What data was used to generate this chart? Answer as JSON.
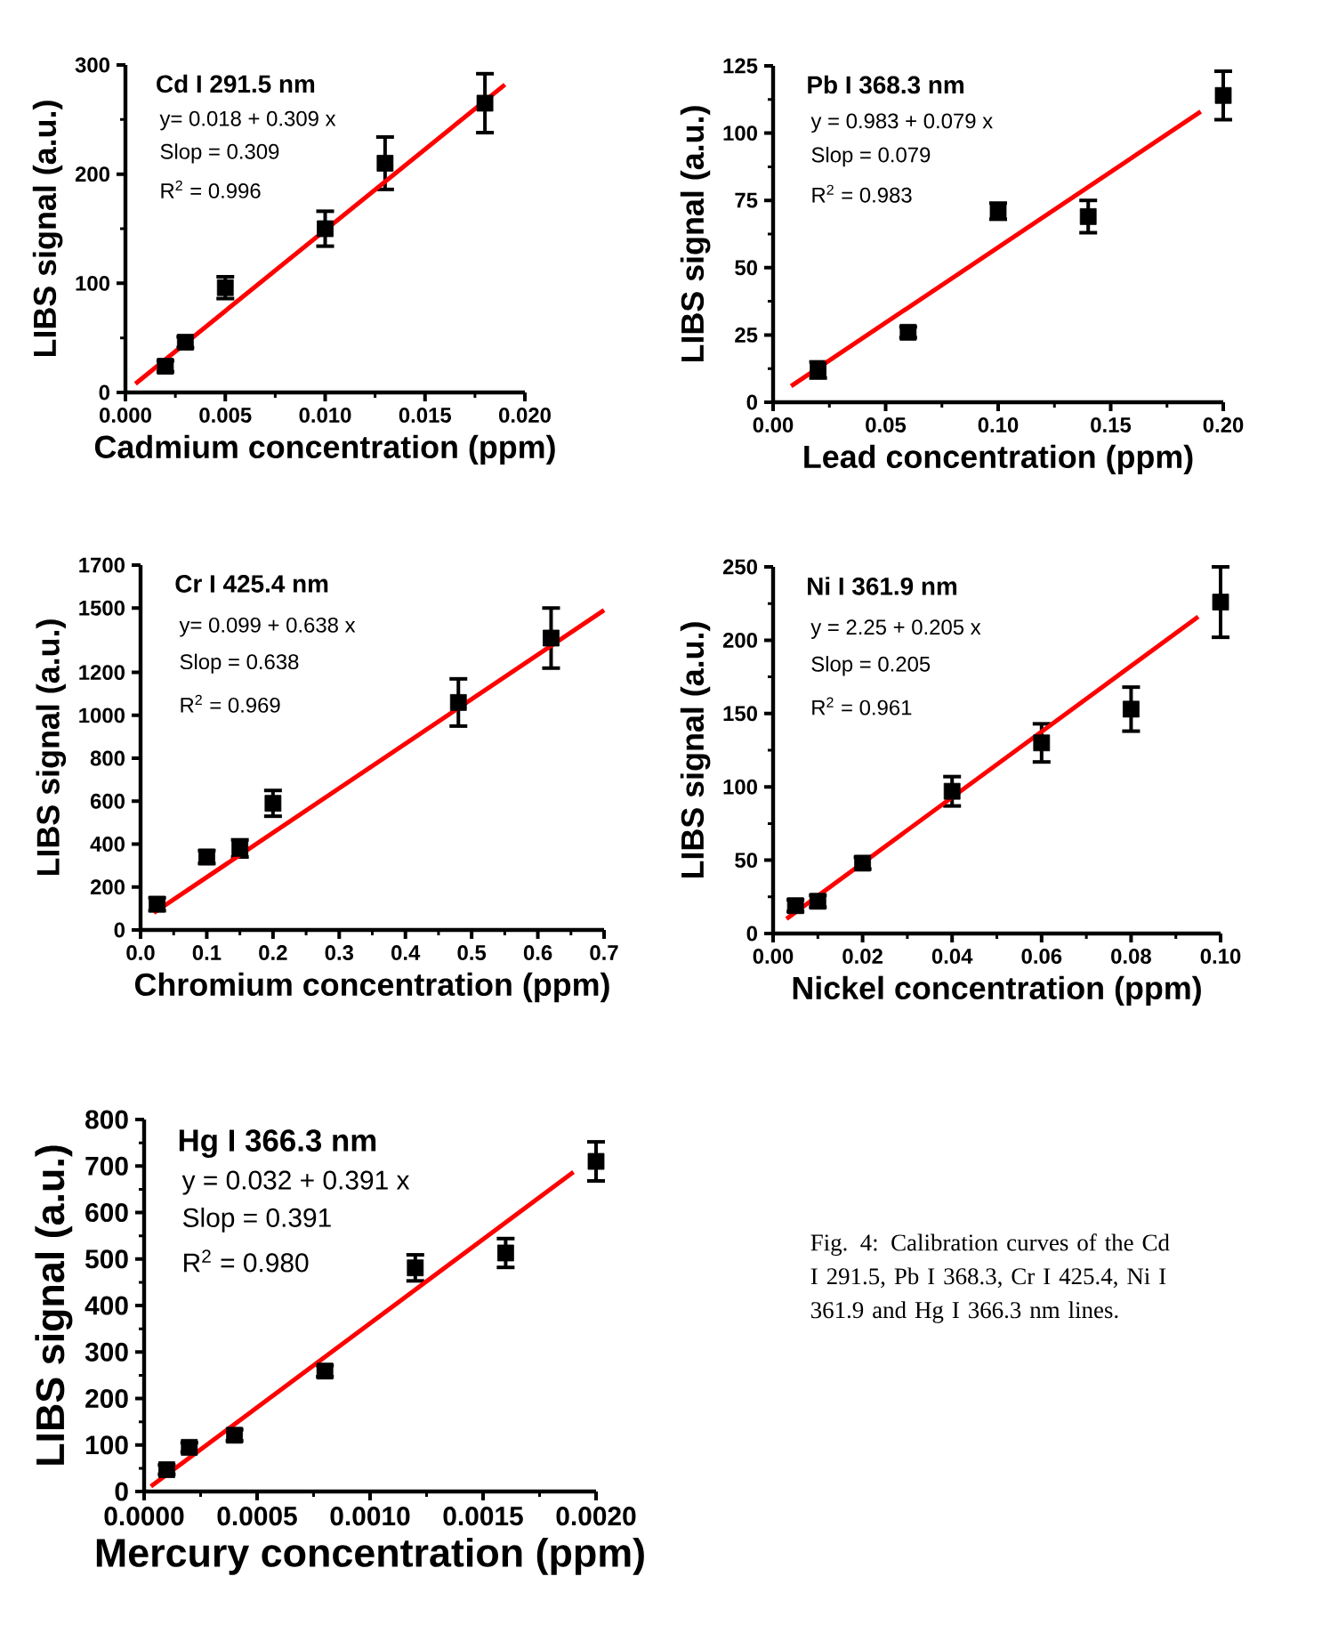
{
  "chart_data": [
    {
      "type": "scatter",
      "title": "Cd I 291.5 nm",
      "xlabel": "Cadmium concentration (ppm)",
      "ylabel": "LIBS signal (a.u.)",
      "annotations": [
        "y= 0.018 + 0.309 x",
        "Slop = 0.309",
        "R$^{2}$ = 0.996"
      ],
      "xlim": [
        0,
        0.02
      ],
      "ylim": [
        0,
        300
      ],
      "xticks": [
        {
          "value": 0,
          "label": "0.000"
        },
        {
          "value": 0.005,
          "label": "0.005"
        },
        {
          "value": 0.01,
          "label": "0.010"
        },
        {
          "value": 0.015,
          "label": "0.015"
        },
        {
          "value": 0.02,
          "label": "0.020"
        }
      ],
      "yticks": [
        0,
        100,
        200,
        300
      ],
      "series": [
        {
          "type": "scatter",
          "color": "#000000",
          "marker": "square",
          "x": [
            0.002,
            0.003,
            0.005,
            0.01,
            0.013,
            0.018
          ],
          "values": [
            24,
            46,
            96,
            150,
            210,
            265
          ],
          "errors": [
            5,
            5,
            10,
            16,
            24,
            27
          ]
        },
        {
          "type": "line",
          "color": "#ff0000",
          "marker": "none",
          "line_style": "solid",
          "x": [
            0.0005,
            0.019
          ],
          "values": [
            8,
            282
          ]
        }
      ]
    },
    {
      "type": "scatter",
      "title": "Pb I 368.3 nm",
      "xlabel": "Lead concentration (ppm)",
      "ylabel": "LIBS signal (a.u.)",
      "annotations": [
        "y = 0.983 + 0.079 x",
        "Slop = 0.079",
        "R$^{2}$ = 0.983"
      ],
      "xlim": [
        0,
        0.2
      ],
      "ylim": [
        0,
        125
      ],
      "xticks": [
        {
          "value": 0,
          "label": "0.00"
        },
        {
          "value": 0.05,
          "label": "0.05"
        },
        {
          "value": 0.1,
          "label": "0.10"
        },
        {
          "value": 0.15,
          "label": "0.15"
        },
        {
          "value": 0.2,
          "label": "0.20"
        }
      ],
      "yticks": [
        0,
        25,
        50,
        75,
        100,
        125
      ],
      "series": [
        {
          "type": "scatter",
          "color": "#000000",
          "marker": "square",
          "x": [
            0.02,
            0.06,
            0.1,
            0.14,
            0.2
          ],
          "values": [
            12,
            26,
            71,
            69,
            114
          ],
          "errors": [
            3,
            2,
            3,
            6,
            9
          ]
        },
        {
          "type": "line",
          "color": "#ff0000",
          "marker": "none",
          "line_style": "solid",
          "x": [
            0.008,
            0.19
          ],
          "values": [
            6,
            108
          ]
        }
      ]
    },
    {
      "type": "scatter",
      "title": "Cr I 425.4 nm",
      "xlabel": "Chromium concentration (ppm)",
      "ylabel": "LIBS signal (a.u.)",
      "annotations": [
        "y= 0.099 + 0.638 x",
        "Slop = 0.638",
        "R$^{2}$ = 0.969"
      ],
      "xlim": [
        0,
        0.7
      ],
      "ylim": [
        0,
        1700
      ],
      "xticks": [
        {
          "value": 0,
          "label": "0.0"
        },
        {
          "value": 0.1,
          "label": "0.1"
        },
        {
          "value": 0.2,
          "label": "0.2"
        },
        {
          "value": 0.3,
          "label": "0.3"
        },
        {
          "value": 0.4,
          "label": "0.4"
        },
        {
          "value": 0.5,
          "label": "0.5"
        },
        {
          "value": 0.6,
          "label": "0.6"
        },
        {
          "value": 0.7,
          "label": "0.7"
        }
      ],
      "yticks": [
        0,
        200,
        400,
        600,
        800,
        1000,
        1200,
        1500,
        1700
      ],
      "series": [
        {
          "type": "scatter",
          "color": "#000000",
          "marker": "square",
          "x": [
            0.025,
            0.1,
            0.15,
            0.2,
            0.48,
            0.62
          ],
          "values": [
            120,
            340,
            380,
            590,
            1060,
            1360
          ],
          "errors": [
            30,
            30,
            40,
            60,
            110,
            140
          ]
        },
        {
          "type": "line",
          "color": "#ff0000",
          "marker": "none",
          "line_style": "solid",
          "x": [
            0.02,
            0.7
          ],
          "values": [
            80,
            1490
          ]
        }
      ]
    },
    {
      "type": "scatter",
      "title": "Ni I 361.9 nm",
      "xlabel": "Nickel concentration (ppm)",
      "ylabel": "LIBS signal (a.u.)",
      "annotations": [
        "y = 2.25 + 0.205 x",
        "Slop = 0.205",
        "R$^{2}$ = 0.961"
      ],
      "xlim": [
        0,
        0.1
      ],
      "ylim": [
        0,
        250
      ],
      "xticks": [
        {
          "value": 0,
          "label": "0.00"
        },
        {
          "value": 0.02,
          "label": "0.02"
        },
        {
          "value": 0.04,
          "label": "0.04"
        },
        {
          "value": 0.06,
          "label": "0.06"
        },
        {
          "value": 0.08,
          "label": "0.08"
        },
        {
          "value": 0.1,
          "label": "0.10"
        }
      ],
      "yticks": [
        0,
        50,
        100,
        150,
        200,
        250
      ],
      "series": [
        {
          "type": "scatter",
          "color": "#000000",
          "marker": "square",
          "x": [
            0.005,
            0.01,
            0.02,
            0.04,
            0.06,
            0.08,
            0.1
          ],
          "values": [
            19,
            22,
            48,
            97,
            130,
            153,
            226
          ],
          "errors": [
            4,
            4,
            4,
            10,
            13,
            15,
            24
          ]
        },
        {
          "type": "line",
          "color": "#ff0000",
          "marker": "none",
          "line_style": "solid",
          "x": [
            0.003,
            0.095
          ],
          "values": [
            10,
            216
          ]
        }
      ]
    },
    {
      "type": "scatter",
      "title": "Hg I 366.3 nm",
      "xlabel": "Mercury concentration (ppm)",
      "ylabel": "LIBS signal (a.u.)",
      "annotations": [
        "y = 0.032 + 0.391 x",
        "Slop = 0.391",
        "R$^{2}$ = 0.980",
        "Fig. 4: Calibration curves of the Cd I 291.5, Pb I 368.3, Cr I 425.4, Ni I 361.9 and Hg I 366.3 nm lines."
      ],
      "xlim": [
        0,
        0.002
      ],
      "ylim": [
        0,
        800
      ],
      "xticks": [
        {
          "value": 0,
          "label": "0.0000"
        },
        {
          "value": 0.0005,
          "label": "0.0005"
        },
        {
          "value": 0.001,
          "label": "0.0010"
        },
        {
          "value": 0.0015,
          "label": "0.0015"
        },
        {
          "value": 0.002,
          "label": "0.0020"
        }
      ],
      "yticks": [
        0,
        100,
        200,
        300,
        400,
        500,
        600,
        700,
        800
      ],
      "series": [
        {
          "type": "scatter",
          "color": "#000000",
          "marker": "square",
          "x": [
            0.0001,
            0.0002,
            0.0004,
            0.0008,
            0.0012,
            0.0016,
            0.002
          ],
          "values": [
            47,
            95,
            121,
            259,
            481,
            513,
            710
          ],
          "errors": [
            10,
            10,
            12,
            12,
            28,
            31,
            42
          ]
        },
        {
          "type": "line",
          "color": "#ff0000",
          "marker": "none",
          "line_style": "solid",
          "x": [
            3e-05,
            0.0019
          ],
          "values": [
            11,
            687
          ]
        }
      ]
    }
  ]
}
